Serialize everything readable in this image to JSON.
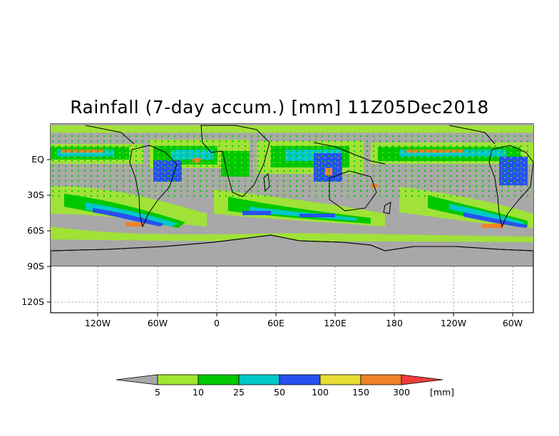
{
  "title": "Rainfall (7-day accum.) [mm] 11Z05Dec2018",
  "map": {
    "land_color": "#aaaaaa",
    "no_data_color": "#ffffff",
    "y_ticks": [
      "EQ",
      "30S",
      "60S",
      "90S",
      "120S"
    ],
    "x_ticks": [
      "120W",
      "60W",
      "0",
      "60E",
      "120E",
      "180",
      "120W",
      "60W"
    ]
  },
  "colorbar": {
    "unit": "[mm]",
    "thresholds": [
      "5",
      "10",
      "25",
      "50",
      "100",
      "150",
      "300"
    ],
    "colors": [
      "#a8a8a8",
      "#a0e632",
      "#00c800",
      "#00c8c8",
      "#2850f0",
      "#e6dc32",
      "#f08228",
      "#f03c3c"
    ]
  }
}
